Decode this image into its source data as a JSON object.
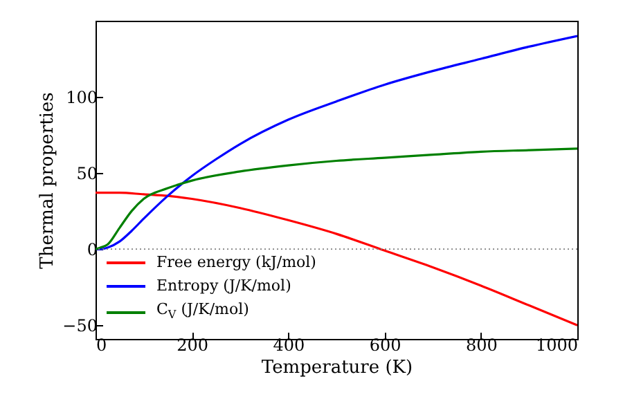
{
  "chart_data": {
    "type": "line",
    "xlabel": "Temperature (K)",
    "ylabel": "Thermal properties",
    "xlim": [
      0,
      1000
    ],
    "ylim": [
      -59,
      150
    ],
    "xticks": [
      0,
      200,
      400,
      600,
      800,
      1000
    ],
    "yticks": [
      -50,
      0,
      50,
      100
    ],
    "grid": false,
    "legend": "bottom left",
    "line_style": "solid",
    "marker": "none",
    "ref_lines": [
      {
        "axis": "y",
        "value": 0,
        "color": "#808080",
        "line_style": "dotted"
      }
    ],
    "series": [
      {
        "name": "Free energy (kJ/mol)",
        "color": "#ff0000",
        "x": [
          0,
          50,
          100,
          150,
          200,
          300,
          400,
          500,
          600,
          700,
          800,
          900,
          1000
        ],
        "values": [
          37,
          37,
          36,
          35,
          33,
          27,
          19,
          10,
          -1,
          -12,
          -24,
          -37,
          -50
        ]
      },
      {
        "name": "Entropy (J/K/mol)",
        "color": "#0000ff",
        "x": [
          0,
          10,
          25,
          50,
          75,
          100,
          150,
          200,
          250,
          300,
          400,
          500,
          600,
          700,
          800,
          900,
          1000
        ],
        "values": [
          0,
          0,
          1,
          5,
          12,
          20,
          35,
          48,
          59,
          69,
          85,
          97,
          108,
          117,
          125,
          133,
          140
        ]
      },
      {
        "name": "C$_{V}$ (J/K/mol)",
        "color": "#008000",
        "x": [
          0,
          10,
          25,
          50,
          75,
          100,
          150,
          200,
          300,
          400,
          500,
          600,
          700,
          800,
          900,
          1000
        ],
        "values": [
          0,
          1,
          3,
          14,
          25,
          33,
          40,
          45,
          51,
          55,
          58,
          60,
          62,
          64,
          65,
          66
        ]
      }
    ]
  }
}
